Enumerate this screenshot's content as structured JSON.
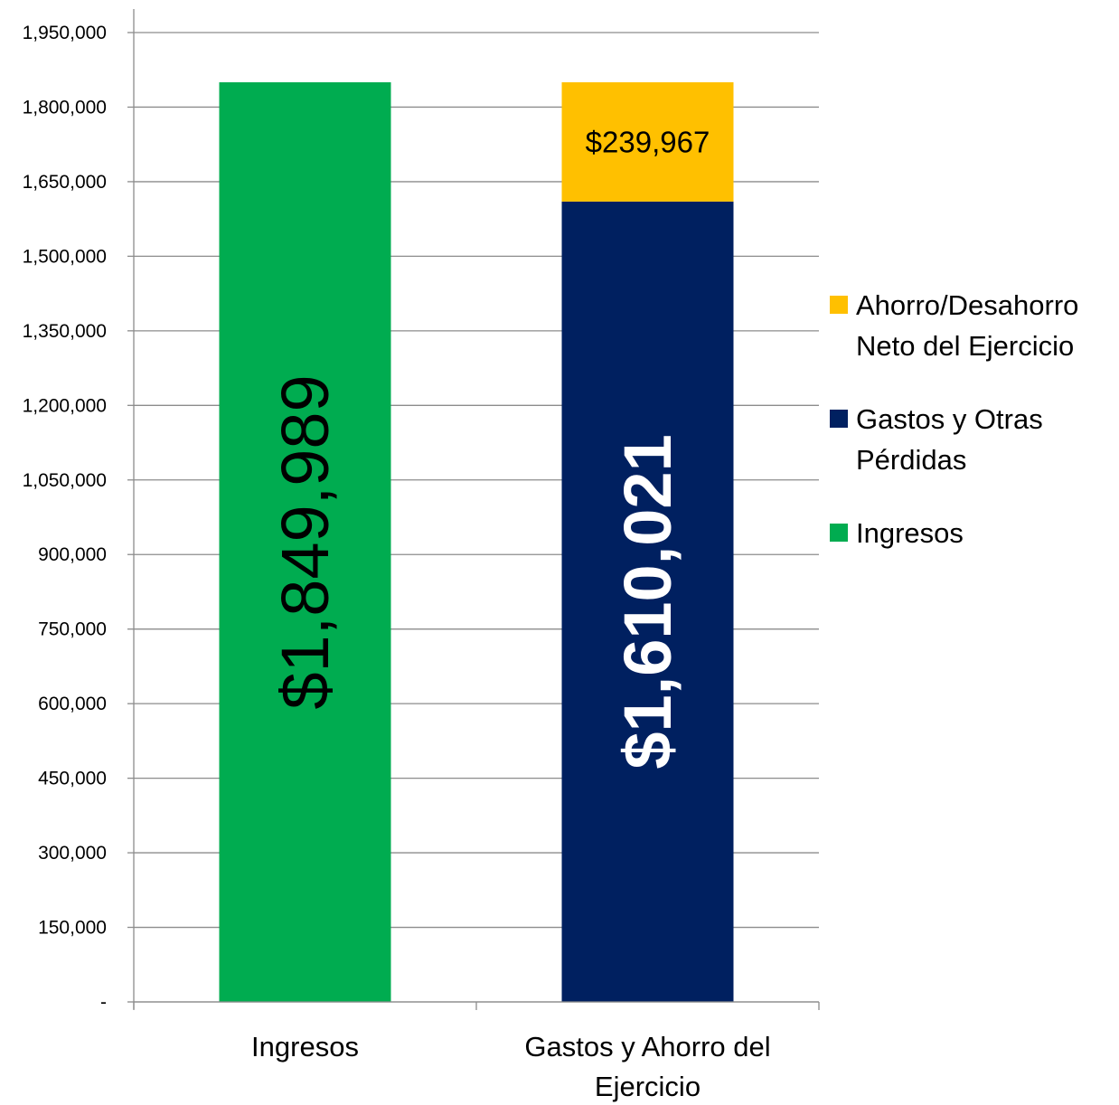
{
  "chart_data": {
    "type": "bar",
    "stacked": true,
    "categories": [
      "Ingresos",
      "Gastos y Ahorro del Ejercicio"
    ],
    "series": [
      {
        "name": "Ingresos",
        "values": [
          1849989,
          0
        ],
        "color": "#00AC50"
      },
      {
        "name": "Gastos y Otras Pérdidas",
        "values": [
          0,
          1610021
        ],
        "color": "#002060"
      },
      {
        "name": "Ahorro/Desahorro Neto del Ejercicio",
        "values": [
          0,
          239967
        ],
        "color": "#FFC000"
      }
    ],
    "data_labels": [
      {
        "text": "$1,849,989",
        "series": 0,
        "category": 0,
        "color": "#000000"
      },
      {
        "text": "$1,610,021",
        "series": 1,
        "category": 1,
        "color": "#ffffff"
      },
      {
        "text": "$239,967",
        "series": 2,
        "category": 1,
        "color": "#000000"
      }
    ],
    "ylim": [
      0,
      1950000
    ],
    "yticks": [
      0,
      150000,
      300000,
      450000,
      600000,
      750000,
      900000,
      1050000,
      1200000,
      1350000,
      1500000,
      1650000,
      1800000,
      1950000
    ],
    "ytick_labels": [
      "-",
      "150,000",
      "300,000",
      "450,000",
      "600,000",
      "750,000",
      "900,000",
      "1,050,000",
      "1,200,000",
      "1,350,000",
      "1,500,000",
      "1,650,000",
      "1,800,000",
      "1,950,000"
    ],
    "grid": true,
    "legend_position": "right",
    "legend_order": [
      2,
      1,
      0
    ],
    "title": "",
    "xlabel": "",
    "ylabel": ""
  }
}
